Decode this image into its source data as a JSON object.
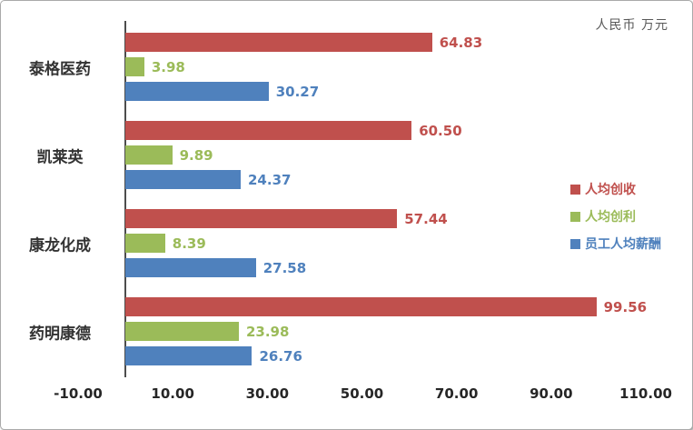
{
  "chart_data": {
    "type": "bar",
    "orientation": "horizontal",
    "title": "",
    "unit_label": "人民币 万元",
    "categories": [
      "泰格医药",
      "凯莱英",
      "康龙化成",
      "药明康德"
    ],
    "series": [
      {
        "name": "人均创收",
        "color": "#C0504D",
        "values": [
          64.83,
          60.5,
          57.44,
          99.56
        ]
      },
      {
        "name": "人均创利",
        "color": "#9BBB59",
        "values": [
          3.98,
          9.89,
          8.39,
          23.98
        ]
      },
      {
        "name": "员工人均薪酬",
        "color": "#4F81BD",
        "values": [
          30.27,
          24.37,
          27.58,
          26.76
        ]
      }
    ],
    "xlim": [
      -10,
      110
    ],
    "xticks": [
      -10,
      10,
      30,
      50,
      70,
      90,
      110
    ],
    "xtick_labels": [
      "-10.00",
      "10.00",
      "30.00",
      "50.00",
      "70.00",
      "90.00",
      "110.00"
    ],
    "legend_position": "right",
    "grid": false,
    "axis_line_color": "#4d4d4d",
    "tick_label_color": "#262626"
  }
}
